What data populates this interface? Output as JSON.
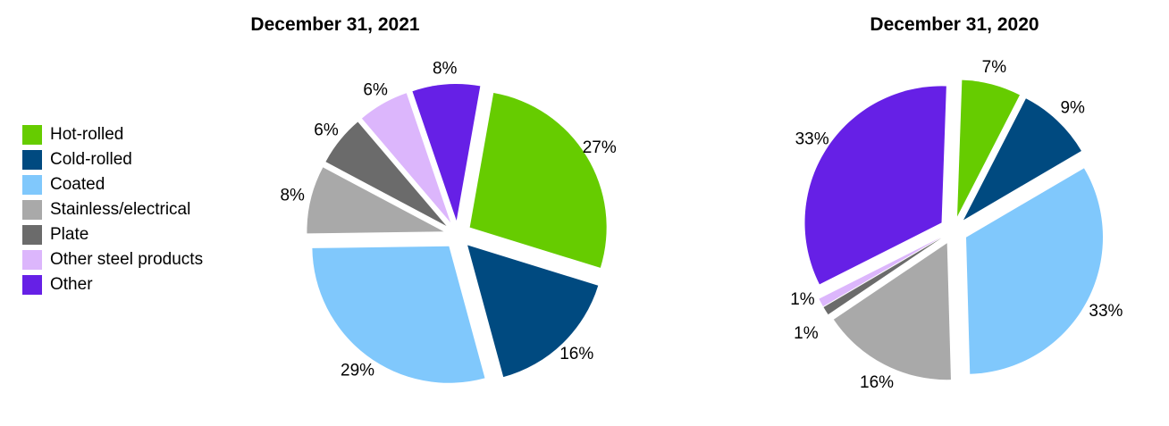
{
  "colors": {
    "Hot-rolled": "#66cc00",
    "Cold-rolled": "#004a80",
    "Coated": "#80c8fc",
    "Stainless/electrical": "#a9a9a9",
    "Plate": "#6b6b6b",
    "Other steel products": "#dcb6fc",
    "Other": "#6620e6"
  },
  "legend": [
    "Hot-rolled",
    "Cold-rolled",
    "Coated",
    "Stainless/electrical",
    "Plate",
    "Other steel products",
    "Other"
  ],
  "chart_data": [
    {
      "type": "pie",
      "title": "December 31, 2021",
      "categories": [
        "Hot-rolled",
        "Cold-rolled",
        "Coated",
        "Stainless/electrical",
        "Plate",
        "Other steel products",
        "Other"
      ],
      "values": [
        27,
        16,
        29,
        8,
        6,
        6,
        8
      ],
      "labels": [
        "27%",
        "16%",
        "29%",
        "8%",
        "6%",
        "6%",
        "8%"
      ]
    },
    {
      "type": "pie",
      "title": "December 31, 2020",
      "categories": [
        "Hot-rolled",
        "Cold-rolled",
        "Coated",
        "Stainless/electrical",
        "Plate",
        "Other steel products",
        "Other"
      ],
      "values": [
        7,
        9,
        33,
        16,
        1,
        1,
        33
      ],
      "labels": [
        "7%",
        "9%",
        "33%",
        "16%",
        "1%",
        "1%",
        "33%"
      ]
    }
  ]
}
